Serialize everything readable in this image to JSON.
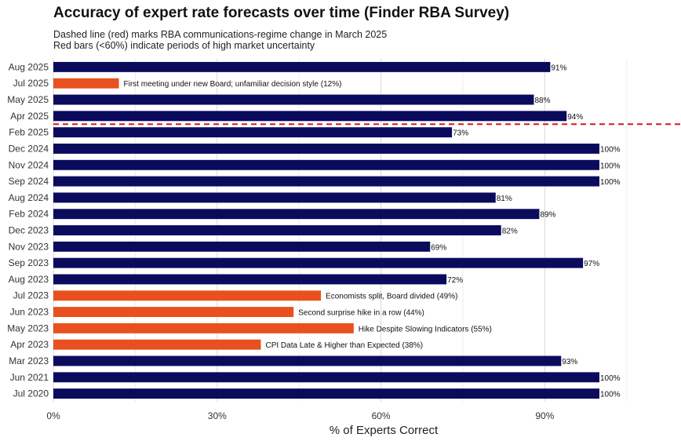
{
  "chart_data": {
    "type": "bar",
    "orientation": "horizontal",
    "title": "Accuracy of expert rate forecasts over time (Finder RBA Survey)",
    "subtitle_lines": [
      "Dashed line (red) marks RBA communications-regime change in March 2025",
      "Red bars (<60%) indicate periods of high market uncertainty"
    ],
    "xlabel": "% of Experts Correct",
    "ylabel": "",
    "xlim": [
      0,
      105
    ],
    "xticks": [
      0,
      30,
      60,
      90
    ],
    "xtick_labels": [
      "0%",
      "30%",
      "60%",
      "90%"
    ],
    "grid": true,
    "colors": {
      "normal": "#0b0b5e",
      "uncertain": "#e8501e",
      "regime_line": "#d7191c"
    },
    "regime_line_between": [
      "Apr 2025",
      "Feb 2025"
    ],
    "bars": [
      {
        "category": "Aug 2025",
        "value": 91,
        "label": "91%",
        "uncertain": false
      },
      {
        "category": "Jul 2025",
        "value": 12,
        "label": "First meeting under new Board; unfamiliar decision style (12%)",
        "uncertain": true
      },
      {
        "category": "May 2025",
        "value": 88,
        "label": "88%",
        "uncertain": false
      },
      {
        "category": "Apr 2025",
        "value": 94,
        "label": "94%",
        "uncertain": false
      },
      {
        "category": "Feb 2025",
        "value": 73,
        "label": "73%",
        "uncertain": false
      },
      {
        "category": "Dec 2024",
        "value": 100,
        "label": "100%",
        "uncertain": false
      },
      {
        "category": "Nov 2024",
        "value": 100,
        "label": "100%",
        "uncertain": false
      },
      {
        "category": "Sep 2024",
        "value": 100,
        "label": "100%",
        "uncertain": false
      },
      {
        "category": "Aug 2024",
        "value": 81,
        "label": "81%",
        "uncertain": false
      },
      {
        "category": "Feb 2024",
        "value": 89,
        "label": "89%",
        "uncertain": false
      },
      {
        "category": "Dec 2023",
        "value": 82,
        "label": "82%",
        "uncertain": false
      },
      {
        "category": "Nov 2023",
        "value": 69,
        "label": "69%",
        "uncertain": false
      },
      {
        "category": "Sep 2023",
        "value": 97,
        "label": "97%",
        "uncertain": false
      },
      {
        "category": "Aug 2023",
        "value": 72,
        "label": "72%",
        "uncertain": false
      },
      {
        "category": "Jul 2023",
        "value": 49,
        "label": "Economists split, Board divided (49%)",
        "uncertain": true
      },
      {
        "category": "Jun 2023",
        "value": 44,
        "label": "Second surprise hike in a row (44%)",
        "uncertain": true
      },
      {
        "category": "May 2023",
        "value": 55,
        "label": "Hike Despite Slowing Indicators (55%)",
        "uncertain": true
      },
      {
        "category": "Apr 2023",
        "value": 38,
        "label": "CPI Data Late & Higher than Expected (38%)",
        "uncertain": true
      },
      {
        "category": "Mar 2023",
        "value": 93,
        "label": "93%",
        "uncertain": false
      },
      {
        "category": "Jun 2021",
        "value": 100,
        "label": "100%",
        "uncertain": false
      },
      {
        "category": "Jul 2020",
        "value": 100,
        "label": "100%",
        "uncertain": false
      }
    ]
  }
}
